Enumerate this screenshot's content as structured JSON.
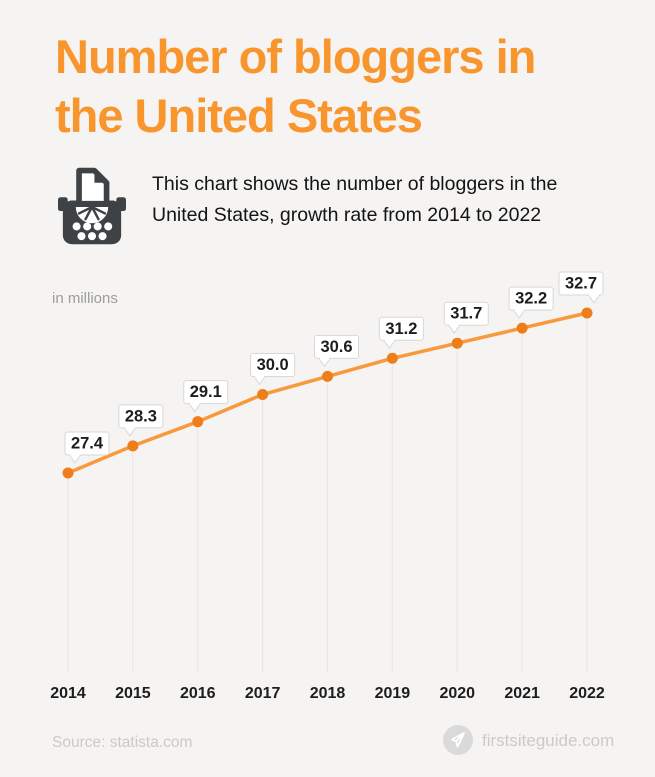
{
  "page": {
    "title": "Number of bloggers in the United States",
    "subtitle": "This chart shows the number of bloggers in the United States, growth rate from 2014 to 2022",
    "units_label": "in millions",
    "source_label": "Source: statista.com",
    "brand_label": "firstsiteguide.com",
    "header_icon": "typewriter-icon",
    "brand_icon": "paper-plane-icon"
  },
  "colors": {
    "background": "#f5f4f3",
    "title_orange": "#f8962d",
    "line_orange": "#f8993b",
    "dot_orange": "#ee7d1a",
    "gridline": "#e9e7e5",
    "callout_border": "#d8d7d5",
    "text_dark": "#1d1d1d",
    "muted_gray": "#9c9c9c",
    "footer_gray": "#cbcac8",
    "brand_circle_gray": "#dadada",
    "icon_dark": "#3f4245"
  },
  "chart_data": {
    "type": "line",
    "title": "Number of bloggers in the United States",
    "subtitle": "This chart shows the number of bloggers in the United States, growth rate from 2014 to 2022",
    "ylabel": "in millions",
    "xlabel": "",
    "categories": [
      "2014",
      "2015",
      "2016",
      "2017",
      "2018",
      "2019",
      "2020",
      "2021",
      "2022"
    ],
    "values": [
      27.4,
      28.3,
      29.1,
      30.0,
      30.6,
      31.2,
      31.7,
      32.2,
      32.7
    ],
    "data_labels": [
      "27.4",
      "28.3",
      "29.1",
      "30.0",
      "30.6",
      "31.2",
      "31.7",
      "32.2",
      "32.7"
    ],
    "ylim": [
      27.4,
      32.7
    ],
    "grid": "vertical-only",
    "legend": false,
    "markers": true,
    "source": "statista.com"
  }
}
